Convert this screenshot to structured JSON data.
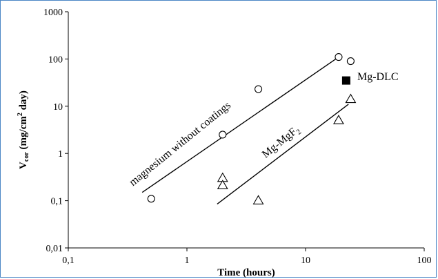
{
  "chart_data": {
    "type": "scatter",
    "title": "",
    "xlabel": "Time (hours)",
    "ylabel": {
      "main": "V",
      "sub": "cor",
      "rest_1": " (mg/cm",
      "sup": "2",
      "rest_2": " day)"
    },
    "x_scale": "log",
    "y_scale": "log",
    "xlim": [
      0.1,
      100
    ],
    "ylim": [
      0.01,
      1000
    ],
    "x_ticks": [
      0.1,
      1,
      10,
      100
    ],
    "x_tick_labels": [
      "0,1",
      "1",
      "10",
      "100"
    ],
    "y_ticks": [
      0.01,
      0.1,
      1,
      10,
      100,
      1000
    ],
    "y_tick_labels": [
      "0,01",
      "0,1",
      "1",
      "10",
      "100",
      "1000"
    ],
    "grid": false,
    "legend": "none",
    "series": [
      {
        "marker": "circle",
        "points": [
          {
            "x": 0.5,
            "y": 0.11
          },
          {
            "x": 2,
            "y": 2.5
          },
          {
            "x": 4,
            "y": 23
          },
          {
            "x": 19,
            "y": 110
          },
          {
            "x": 24,
            "y": 90
          }
        ]
      },
      {
        "marker": "triangle",
        "points": [
          {
            "x": 2,
            "y": 0.3
          },
          {
            "x": 2,
            "y": 0.21
          },
          {
            "x": 4,
            "y": 0.1
          },
          {
            "x": 19,
            "y": 5
          },
          {
            "x": 24,
            "y": 14
          }
        ]
      },
      {
        "marker": "square",
        "points": [
          {
            "x": 22,
            "y": 35
          }
        ]
      }
    ],
    "trend_lines": [
      {
        "x": [
          0.42,
          20
        ],
        "y": [
          0.15,
          120
        ]
      },
      {
        "x": [
          1.8,
          23
        ],
        "y": [
          0.085,
          11
        ]
      }
    ],
    "annotations": {
      "line_1": "magnesium without coatings",
      "line_2": {
        "main": "Mg-MgF",
        "sub": "2"
      },
      "square": "Mg-DLC"
    }
  }
}
